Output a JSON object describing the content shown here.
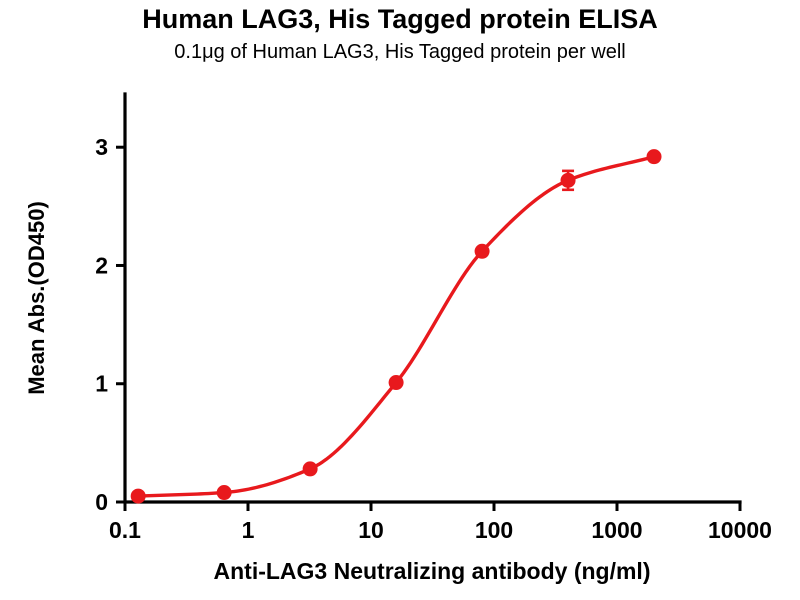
{
  "chart_data": {
    "type": "scatter",
    "title": "Human LAG3, His Tagged protein ELISA",
    "subtitle": "0.1μg of Human LAG3, His Tagged protein per well",
    "xlabel": "Anti-LAG3 Neutralizing antibody (ng/ml)",
    "ylabel": "Mean Abs.(OD450)",
    "x_scale": "log",
    "xlim": [
      0.1,
      10000
    ],
    "ylim": [
      0,
      3.45
    ],
    "x_ticks": [
      0.1,
      1,
      10,
      100,
      1000,
      10000
    ],
    "x_tick_labels": [
      "0.1",
      "1",
      "10",
      "100",
      "1000",
      "10000"
    ],
    "y_ticks": [
      0,
      1,
      2,
      3
    ],
    "y_tick_labels": [
      "0",
      "1",
      "2",
      "3"
    ],
    "grid": false,
    "legend": "none",
    "curve_fit": "sigmoidal dose-response",
    "series": [
      {
        "name": "Anti-LAG3 Neutralizing antibody",
        "color": "#e8191d",
        "marker": "circle",
        "x": [
          0.128,
          0.64,
          3.2,
          16,
          80,
          400,
          2000
        ],
        "y": [
          0.05,
          0.08,
          0.28,
          1.01,
          2.12,
          2.72,
          2.92
        ],
        "y_err": [
          0,
          0,
          0,
          0,
          0,
          0.08,
          0
        ]
      }
    ]
  }
}
